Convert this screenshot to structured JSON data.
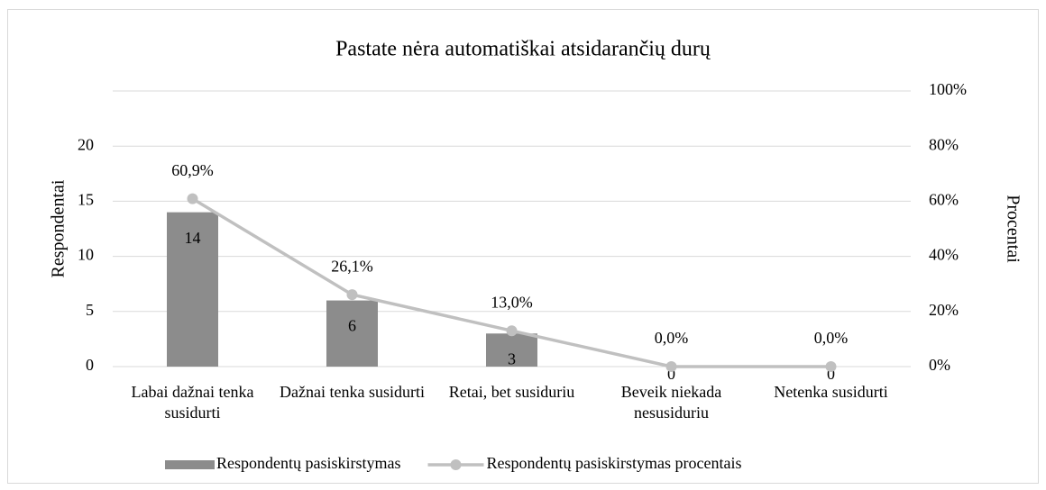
{
  "chart_data": {
    "type": "bar_line",
    "title": "Pastate nėra automatiškai atsidarančių durų",
    "categories": [
      "Labai dažnai tenka susidurti",
      "Dažnai tenka susidurti",
      "Retai, bet susiduriu",
      "Beveik niekada nesusiduriu",
      "Netenka susidurti"
    ],
    "series": [
      {
        "name": "Respondentų pasiskirstymas",
        "color": "#8c8c8c",
        "values": [
          14,
          6,
          3,
          0,
          0
        ]
      },
      {
        "name": "Respondentų pasiskirstymas procentais",
        "color": "#c0c0c0",
        "axis": "y2",
        "values": [
          60.9,
          26.1,
          13.0,
          0.0,
          0.0
        ],
        "value_labels": [
          "60,9%",
          "26,1%",
          "13,0%",
          "0,0%",
          "0,0%"
        ]
      }
    ],
    "ylabel": "Respondentai",
    "y2label": "Procentai",
    "ylim": [
      0,
      25
    ],
    "yticks": [
      0,
      5,
      10,
      15,
      20
    ],
    "y2lim": [
      0,
      100
    ],
    "y2ticks": [
      {
        "value": 0,
        "label": "0%"
      },
      {
        "value": 20,
        "label": "20%"
      },
      {
        "value": 40,
        "label": "40%"
      },
      {
        "value": 60,
        "label": "60%"
      },
      {
        "value": 80,
        "label": "80%"
      },
      {
        "value": 100,
        "label": "100%"
      }
    ],
    "grid": true,
    "legend": "bottom"
  }
}
